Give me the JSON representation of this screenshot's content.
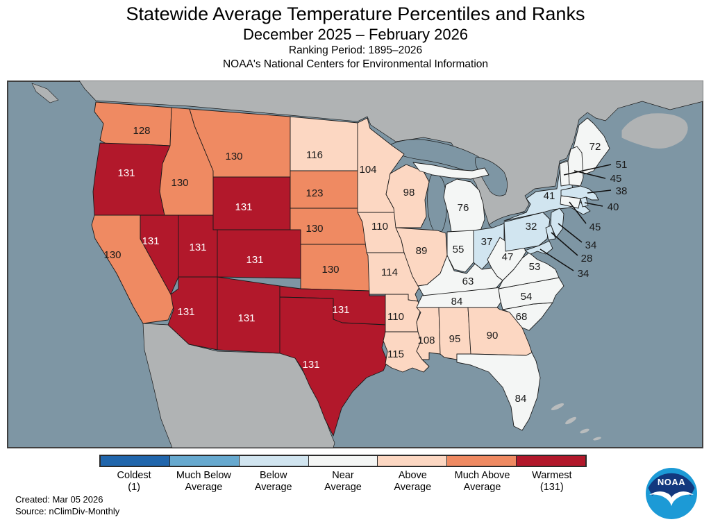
{
  "title": {
    "line1": "Statewide Average Temperature Percentiles and Ranks",
    "line2": "December 2025 – February 2026",
    "line3": "Ranking Period: 1895–2026",
    "line4": "NOAA's National Centers for Environmental Information"
  },
  "footer": {
    "created": "Created: Mar 05 2026",
    "source": "Source: nClimDiv-Monthly"
  },
  "logo": {
    "text": "NOAA"
  },
  "colors": {
    "ocean": "#7e96a4",
    "foreign_land": "#b0b3b4",
    "island": "#b9bcbd",
    "frame": "#3f3f3f",
    "state_border": "#1a1a1a",
    "coldest": "#2166ac",
    "much_below": "#67a9cf",
    "below": "#d1e5f0",
    "near": "#f4f6f5",
    "above": "#fcd7c2",
    "much_above": "#ef8a62",
    "warmest": "#b2182b",
    "label_dark": "#1a1a1a",
    "label_light": "#ffffff",
    "logo_navy": "#12387e",
    "logo_blue": "#1c9ad6"
  },
  "legend": {
    "items": [
      {
        "line1": "Coldest",
        "line2": "(1)",
        "category": "coldest"
      },
      {
        "line1": "Much Below",
        "line2": "Average",
        "category": "much_below"
      },
      {
        "line1": "Below",
        "line2": "Average",
        "category": "below"
      },
      {
        "line1": "Near",
        "line2": "Average",
        "category": "near"
      },
      {
        "line1": "Above",
        "line2": "Average",
        "category": "above"
      },
      {
        "line1": "Much Above",
        "line2": "Average",
        "category": "much_above"
      },
      {
        "line1": "Warmest",
        "line2": "(131)",
        "category": "warmest"
      }
    ]
  },
  "chart_data": {
    "type": "choropleth-map",
    "title": "Statewide Average Temperature Percentiles and Ranks",
    "rank_scale": [
      1,
      131
    ],
    "states": [
      {
        "abbr": "WA",
        "name": "Washington",
        "rank": 128,
        "category": "much_above"
      },
      {
        "abbr": "OR",
        "name": "Oregon",
        "rank": 131,
        "category": "warmest"
      },
      {
        "abbr": "CA",
        "name": "California",
        "rank": 130,
        "category": "much_above"
      },
      {
        "abbr": "ID",
        "name": "Idaho",
        "rank": 130,
        "category": "much_above"
      },
      {
        "abbr": "NV",
        "name": "Nevada",
        "rank": 131,
        "category": "warmest"
      },
      {
        "abbr": "UT",
        "name": "Utah",
        "rank": 131,
        "category": "warmest"
      },
      {
        "abbr": "AZ",
        "name": "Arizona",
        "rank": 131,
        "category": "warmest"
      },
      {
        "abbr": "MT",
        "name": "Montana",
        "rank": 130,
        "category": "much_above"
      },
      {
        "abbr": "WY",
        "name": "Wyoming",
        "rank": 131,
        "category": "warmest"
      },
      {
        "abbr": "CO",
        "name": "Colorado",
        "rank": 131,
        "category": "warmest"
      },
      {
        "abbr": "NM",
        "name": "New Mexico",
        "rank": 131,
        "category": "warmest"
      },
      {
        "abbr": "ND",
        "name": "North Dakota",
        "rank": 116,
        "category": "above"
      },
      {
        "abbr": "SD",
        "name": "South Dakota",
        "rank": 123,
        "category": "much_above"
      },
      {
        "abbr": "NE",
        "name": "Nebraska",
        "rank": 130,
        "category": "much_above"
      },
      {
        "abbr": "KS",
        "name": "Kansas",
        "rank": 130,
        "category": "much_above"
      },
      {
        "abbr": "OK",
        "name": "Oklahoma",
        "rank": 131,
        "category": "warmest"
      },
      {
        "abbr": "TX",
        "name": "Texas",
        "rank": 131,
        "category": "warmest"
      },
      {
        "abbr": "MN",
        "name": "Minnesota",
        "rank": 104,
        "category": "above"
      },
      {
        "abbr": "IA",
        "name": "Iowa",
        "rank": 110,
        "category": "above"
      },
      {
        "abbr": "MO",
        "name": "Missouri",
        "rank": 114,
        "category": "above"
      },
      {
        "abbr": "AR",
        "name": "Arkansas",
        "rank": 110,
        "category": "above"
      },
      {
        "abbr": "LA",
        "name": "Louisiana",
        "rank": 115,
        "category": "above"
      },
      {
        "abbr": "WI",
        "name": "Wisconsin",
        "rank": 98,
        "category": "above"
      },
      {
        "abbr": "IL",
        "name": "Illinois",
        "rank": 89,
        "category": "above"
      },
      {
        "abbr": "MI",
        "name": "Michigan",
        "rank": 76,
        "category": "near"
      },
      {
        "abbr": "IN",
        "name": "Indiana",
        "rank": 55,
        "category": "near"
      },
      {
        "abbr": "OH",
        "name": "Ohio",
        "rank": 37,
        "category": "below"
      },
      {
        "abbr": "KY",
        "name": "Kentucky",
        "rank": 63,
        "category": "near"
      },
      {
        "abbr": "TN",
        "name": "Tennessee",
        "rank": 84,
        "category": "near"
      },
      {
        "abbr": "MS",
        "name": "Mississippi",
        "rank": 108,
        "category": "above"
      },
      {
        "abbr": "AL",
        "name": "Alabama",
        "rank": 95,
        "category": "above"
      },
      {
        "abbr": "GA",
        "name": "Georgia",
        "rank": 90,
        "category": "above"
      },
      {
        "abbr": "FL",
        "name": "Florida",
        "rank": 84,
        "category": "near"
      },
      {
        "abbr": "SC",
        "name": "South Carolina",
        "rank": 68,
        "category": "near"
      },
      {
        "abbr": "NC",
        "name": "North Carolina",
        "rank": 54,
        "category": "near"
      },
      {
        "abbr": "VA",
        "name": "Virginia",
        "rank": 53,
        "category": "near"
      },
      {
        "abbr": "WV",
        "name": "West Virginia",
        "rank": 47,
        "category": "near"
      },
      {
        "abbr": "PA",
        "name": "Pennsylvania",
        "rank": 32,
        "category": "below"
      },
      {
        "abbr": "NY",
        "name": "New York",
        "rank": 41,
        "category": "below"
      },
      {
        "abbr": "ME",
        "name": "Maine",
        "rank": 72,
        "category": "near"
      },
      {
        "abbr": "VT",
        "name": "Vermont",
        "rank": 51,
        "category": "near"
      },
      {
        "abbr": "NH",
        "name": "New Hampshire",
        "rank": 45,
        "category": "near"
      },
      {
        "abbr": "MA",
        "name": "Massachusetts",
        "rank": 38,
        "category": "below"
      },
      {
        "abbr": "RI",
        "name": "Rhode Island",
        "rank": 40,
        "category": "below"
      },
      {
        "abbr": "CT",
        "name": "Connecticut",
        "rank": 45,
        "category": "near"
      },
      {
        "abbr": "NJ",
        "name": "New Jersey",
        "rank": 34,
        "category": "below"
      },
      {
        "abbr": "DE",
        "name": "Delaware",
        "rank": 28,
        "category": "below"
      },
      {
        "abbr": "MD",
        "name": "Maryland",
        "rank": 34,
        "category": "below"
      }
    ]
  }
}
